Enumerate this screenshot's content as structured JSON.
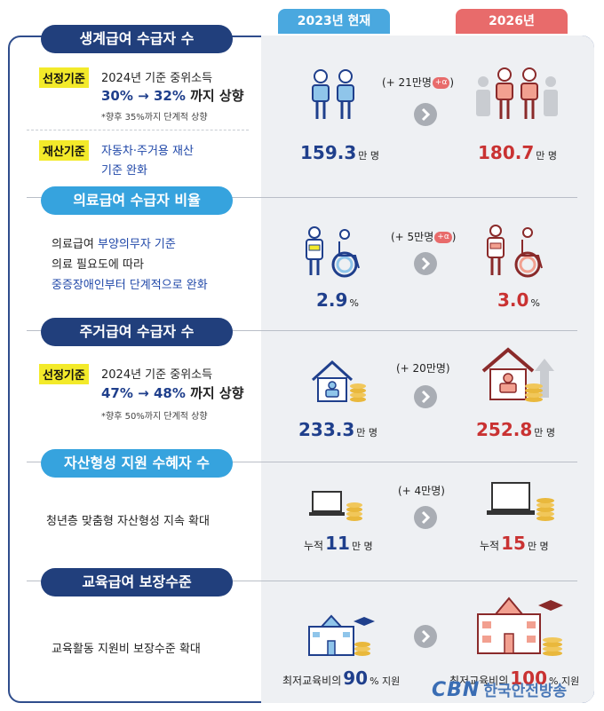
{
  "headers": {
    "current": "2023년 현재",
    "target": "2026년"
  },
  "sections": {
    "s1": {
      "title": "생계급여 수급자 수",
      "tag1": "선정기준",
      "line1": "2024년 기준 중위소득",
      "line2a": "30%",
      "line2b": "→",
      "line2c": "32%",
      "line2d": "까지 상향",
      "note": "*향후 35%까지 단계적 상향",
      "tag2": "재산기준",
      "line3": "자동차·주거용 재산",
      "line4": "기준 완화",
      "delta": "(+ 21만명",
      "delta_badge": "+α",
      "delta_close": ")",
      "v23": "159.3",
      "v23_unit": "만 명",
      "v26": "180.7",
      "v26_unit": "만 명"
    },
    "s2": {
      "title": "의료급여 수급자 비율",
      "line1a": "의료급여 ",
      "line1b": "부양의무자 기준",
      "line2": "의료 필요도에 따라",
      "line3": "중증장애인부터 단계적으로 완화",
      "delta": "(+ 5만명",
      "delta_badge": "+α",
      "delta_close": ")",
      "v23": "2.9",
      "v23_unit": "%",
      "v26": "3.0",
      "v26_unit": "%"
    },
    "s3": {
      "title": "주거급여 수급자 수",
      "tag1": "선정기준",
      "line1": "2024년 기준 중위소득",
      "line2a": "47%",
      "line2b": "→",
      "line2c": "48%",
      "line2d": "까지 상향",
      "note": "*향후 50%까지 단계적 상향",
      "delta": "(+ 20만명)",
      "v23": "233.3",
      "v23_unit": "만 명",
      "v26": "252.8",
      "v26_unit": "만 명"
    },
    "s4": {
      "title": "자산형성 지원 수혜자 수",
      "line1": "청년층 맞춤형 자산형성 지속 확대",
      "delta": "(+ 4만명)",
      "v23_pre": "누적",
      "v23": "11",
      "v23_unit": "만 명",
      "v26_pre": "누적",
      "v26": "15",
      "v26_unit": "만 명"
    },
    "s5": {
      "title": "교육급여 보장수준",
      "line1": "교육활동 지원비  보장수준 확대",
      "v23_pre": "최저교육비의",
      "v23": "90",
      "v23_unit": "% 지원",
      "v26_pre": "최저교육비의",
      "v26": "100",
      "v26_unit": "% 지원"
    }
  },
  "watermark": {
    "logo": "CBN",
    "text": "한국안전방송"
  },
  "colors": {
    "navy": "#213f7c",
    "sky": "#36a3de",
    "red": "#c93232",
    "blue": "#1f3f8c"
  }
}
